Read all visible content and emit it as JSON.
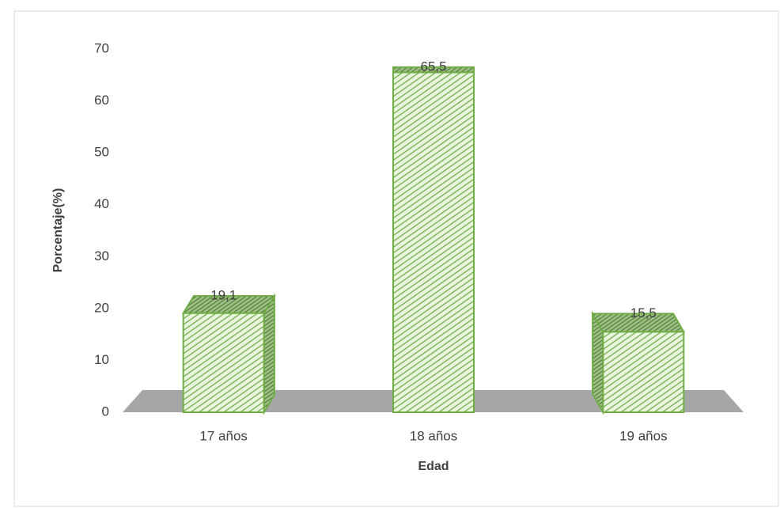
{
  "chart_data": {
    "type": "bar",
    "categories": [
      "17 años",
      "18 años",
      "19 años"
    ],
    "values": [
      19.1,
      65.5,
      15.5
    ],
    "value_labels": [
      "19,1",
      "65,5",
      "15,5"
    ],
    "color": "#70ad47",
    "ylim": [
      0,
      70
    ],
    "yticks": [
      0,
      10,
      20,
      30,
      40,
      50,
      60,
      70
    ],
    "xlabel": "Edad",
    "ylabel": "Porcentaje(%)",
    "grid": false
  }
}
